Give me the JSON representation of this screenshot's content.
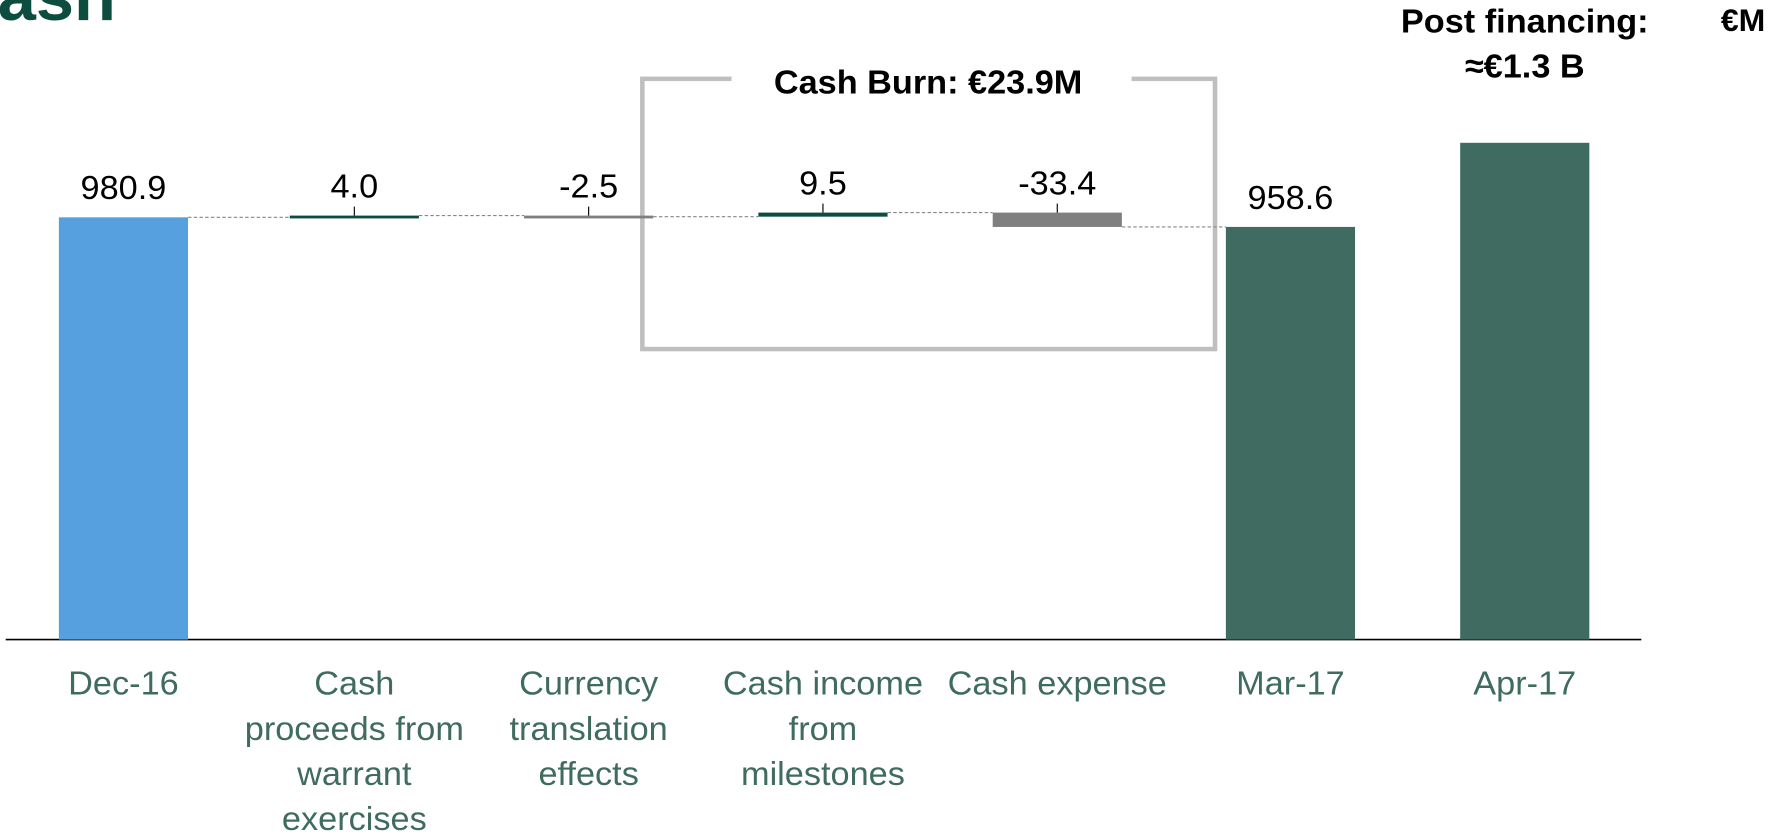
{
  "chart_data": {
    "type": "waterfall",
    "title": "ash",
    "unit": "€M",
    "categories": [
      "Dec-16",
      "Cash proceeds from warrant exercises",
      "Currency translation effects",
      "Cash income from milestones",
      "Cash expense",
      "Mar-17",
      "Apr-17"
    ],
    "measures": [
      "absolute",
      "relative",
      "relative",
      "relative",
      "relative",
      "total",
      "absolute"
    ],
    "values": [
      980.9,
      4.0,
      -2.5,
      9.5,
      -33.4,
      958.6,
      1154
    ],
    "value_labels": [
      "980.9",
      "4.0",
      "-2.5",
      "9.5",
      "-33.4",
      "958.6",
      null
    ],
    "colors": {
      "start": "#56a0e0",
      "increase": "#0d4d3f",
      "decrease": "#7f7f7f",
      "total": "#3f6b60"
    },
    "ylim": [
      0,
      1300
    ],
    "annotations": [
      "Cash Burn: €23.9M",
      "Post financing: ≈€1.3 B"
    ]
  }
}
